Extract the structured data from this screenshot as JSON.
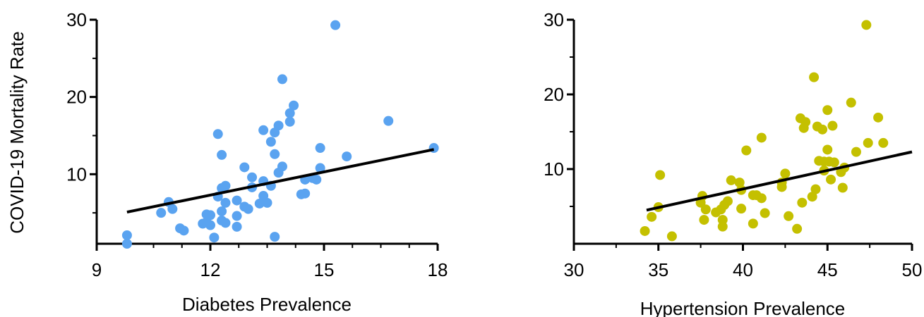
{
  "colors": {
    "left_points": "#5aa3f0",
    "right_points": "#c4c000",
    "axis": "#000000",
    "fit_line": "#000000"
  },
  "shared_ylabel": "COVID-19 Mortality Rate",
  "chart_data": [
    {
      "type": "scatter",
      "title": "",
      "xlabel": "Diabetes Prevalence",
      "ylabel": "COVID-19 Mortality Rate",
      "xlim": [
        9,
        18
      ],
      "ylim": [
        1,
        30
      ],
      "xticks": [
        9,
        12,
        15,
        18
      ],
      "yticks": [
        10,
        20,
        30
      ],
      "grid": false,
      "fit_line": {
        "x": [
          9.8,
          17.9
        ],
        "y": [
          5.1,
          13.2
        ]
      },
      "points": [
        [
          9.8,
          2.1
        ],
        [
          9.8,
          1.0
        ],
        [
          10.7,
          5.0
        ],
        [
          10.9,
          6.4
        ],
        [
          11.0,
          5.5
        ],
        [
          11.2,
          3.0
        ],
        [
          11.3,
          2.7
        ],
        [
          11.8,
          3.6
        ],
        [
          11.9,
          4.8
        ],
        [
          11.9,
          3.8
        ],
        [
          12.0,
          4.7
        ],
        [
          12.0,
          3.4
        ],
        [
          12.1,
          1.8
        ],
        [
          12.2,
          7.1
        ],
        [
          12.2,
          15.2
        ],
        [
          12.3,
          12.5
        ],
        [
          12.3,
          8.2
        ],
        [
          12.3,
          5.2
        ],
        [
          12.4,
          8.5
        ],
        [
          12.4,
          6.3
        ],
        [
          12.3,
          4.0
        ],
        [
          12.4,
          3.7
        ],
        [
          12.7,
          6.6
        ],
        [
          12.7,
          4.6
        ],
        [
          12.7,
          3.2
        ],
        [
          12.9,
          10.9
        ],
        [
          12.9,
          5.8
        ],
        [
          13.0,
          5.5
        ],
        [
          13.1,
          9.6
        ],
        [
          13.1,
          8.3
        ],
        [
          13.3,
          6.2
        ],
        [
          13.4,
          15.7
        ],
        [
          13.4,
          7.2
        ],
        [
          13.4,
          9.1
        ],
        [
          13.5,
          6.3
        ],
        [
          13.6,
          14.2
        ],
        [
          13.6,
          8.5
        ],
        [
          13.7,
          15.4
        ],
        [
          13.7,
          12.6
        ],
        [
          13.7,
          1.9
        ],
        [
          13.8,
          16.3
        ],
        [
          13.8,
          10.2
        ],
        [
          13.9,
          22.3
        ],
        [
          13.9,
          11.0
        ],
        [
          14.1,
          17.9
        ],
        [
          14.1,
          16.8
        ],
        [
          14.2,
          18.9
        ],
        [
          14.4,
          7.4
        ],
        [
          14.5,
          9.3
        ],
        [
          14.5,
          7.5
        ],
        [
          14.7,
          9.5
        ],
        [
          14.8,
          9.3
        ],
        [
          14.9,
          13.4
        ],
        [
          14.9,
          10.8
        ],
        [
          15.3,
          29.3
        ],
        [
          15.6,
          12.3
        ],
        [
          16.7,
          16.9
        ],
        [
          17.9,
          13.4
        ]
      ]
    },
    {
      "type": "scatter",
      "title": "",
      "xlabel": "Hypertension Prevalence",
      "ylabel": "",
      "xlim": [
        30,
        50
      ],
      "ylim": [
        0,
        30
      ],
      "xticks": [
        30,
        35,
        40,
        45,
        50
      ],
      "yticks": [
        10,
        20,
        30
      ],
      "grid": false,
      "fit_line": {
        "x": [
          34.3,
          50.0
        ],
        "y": [
          4.5,
          12.3
        ]
      },
      "points": [
        [
          34.2,
          1.7
        ],
        [
          34.6,
          3.6
        ],
        [
          35.0,
          4.9
        ],
        [
          35.1,
          9.2
        ],
        [
          35.8,
          1.0
        ],
        [
          37.5,
          5.5
        ],
        [
          37.6,
          6.4
        ],
        [
          37.7,
          3.2
        ],
        [
          37.8,
          4.6
        ],
        [
          38.4,
          4.2
        ],
        [
          38.7,
          4.6
        ],
        [
          38.8,
          2.3
        ],
        [
          38.8,
          3.2
        ],
        [
          38.9,
          5.2
        ],
        [
          39.1,
          5.7
        ],
        [
          39.3,
          8.5
        ],
        [
          39.8,
          8.2
        ],
        [
          39.9,
          7.2
        ],
        [
          39.9,
          4.7
        ],
        [
          40.2,
          12.5
        ],
        [
          40.6,
          2.7
        ],
        [
          40.6,
          6.5
        ],
        [
          40.8,
          6.5
        ],
        [
          41.1,
          14.2
        ],
        [
          41.1,
          6.1
        ],
        [
          41.3,
          4.1
        ],
        [
          42.3,
          8.2
        ],
        [
          42.3,
          7.6
        ],
        [
          42.5,
          9.4
        ],
        [
          42.7,
          3.7
        ],
        [
          43.2,
          2.0
        ],
        [
          43.4,
          16.8
        ],
        [
          43.5,
          5.5
        ],
        [
          43.6,
          15.5
        ],
        [
          43.7,
          16.3
        ],
        [
          44.1,
          6.3
        ],
        [
          44.2,
          22.3
        ],
        [
          44.3,
          7.3
        ],
        [
          44.4,
          15.7
        ],
        [
          44.5,
          11.1
        ],
        [
          44.7,
          15.3
        ],
        [
          44.8,
          11.0
        ],
        [
          44.8,
          9.8
        ],
        [
          45.0,
          17.9
        ],
        [
          45.0,
          12.6
        ],
        [
          45.1,
          11.0
        ],
        [
          45.2,
          8.6
        ],
        [
          45.3,
          15.8
        ],
        [
          45.4,
          10.9
        ],
        [
          45.8,
          9.6
        ],
        [
          45.9,
          7.5
        ],
        [
          46.0,
          10.2
        ],
        [
          46.4,
          18.9
        ],
        [
          46.7,
          12.3
        ],
        [
          47.3,
          29.3
        ],
        [
          47.4,
          13.5
        ],
        [
          48.0,
          16.9
        ],
        [
          48.3,
          13.5
        ]
      ]
    }
  ]
}
